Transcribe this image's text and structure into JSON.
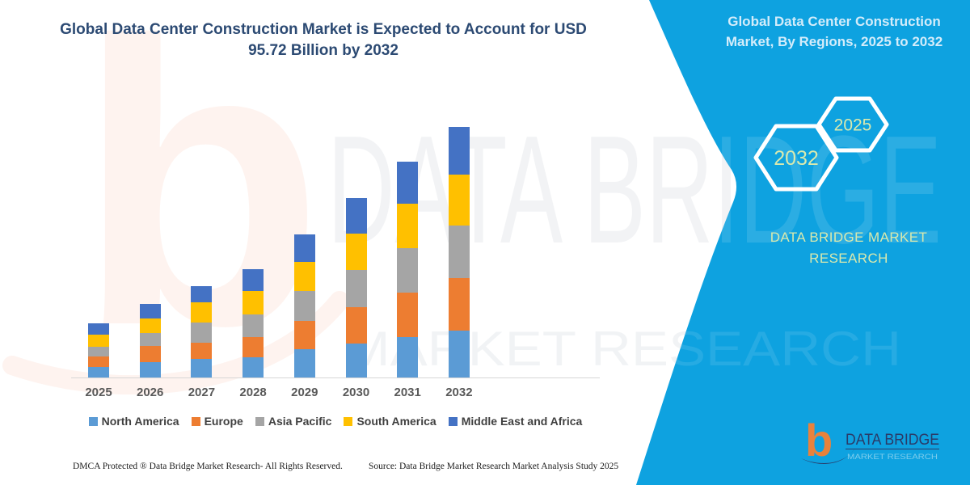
{
  "header": {
    "title_line1": "Global Data Center Construction Market is Expected to Account for USD",
    "title_line2": "95.72 Billion by 2032"
  },
  "side_panel": {
    "heading": "Global Data Center Construction Market, By Regions, 2025 to 2032",
    "hexagons": [
      {
        "label": "2032"
      },
      {
        "label": "2025"
      }
    ],
    "brand_text": "DATA BRIDGE MARKET RESEARCH",
    "background_color": "#0ea2e0",
    "heading_color": "#d3ecfa",
    "accent_text_color": "#d9e9ae"
  },
  "chart_data": {
    "type": "bar",
    "stacked": true,
    "title": "Global Data Center Construction Market is Expected to Account for USD 95.72 Billion by 2032",
    "unit": "USD Billion",
    "xlabel": "",
    "ylabel": "",
    "ylim": [
      0,
      100
    ],
    "grid": false,
    "legend_position": "bottom",
    "categories": [
      "2025",
      "2026",
      "2027",
      "2028",
      "2029",
      "2030",
      "2031",
      "2032"
    ],
    "series": [
      {
        "name": "North America",
        "color": "#5b9bd5",
        "values": [
          4.0,
          5.9,
          7.1,
          7.7,
          10.8,
          12.9,
          15.4,
          18.0
        ]
      },
      {
        "name": "Europe",
        "color": "#ed7d31",
        "values": [
          4.0,
          6.2,
          6.2,
          7.7,
          10.8,
          13.9,
          17.0,
          20.1
        ]
      },
      {
        "name": "Asia Pacific",
        "color": "#a5a5a5",
        "values": [
          3.7,
          4.9,
          7.7,
          8.6,
          11.3,
          14.4,
          17.0,
          19.8
        ]
      },
      {
        "name": "South America",
        "color": "#ffc000",
        "values": [
          4.6,
          5.6,
          7.7,
          9.0,
          11.3,
          13.7,
          17.0,
          19.6
        ]
      },
      {
        "name": "Middle East and Africa",
        "color": "#4472c4",
        "values": [
          4.3,
          5.6,
          6.2,
          8.3,
          10.3,
          13.6,
          16.0,
          18.22
        ]
      }
    ],
    "totals": [
      20.6,
      28.2,
      34.9,
      41.3,
      54.5,
      68.5,
      82.4,
      95.72
    ],
    "annotation_final_value": "USD 95.72 Billion by 2032"
  },
  "footer": {
    "dmca": "DMCA Protected ® Data Bridge Market Research- All Rights Reserved.",
    "source": "Source: Data Bridge Market Research Market Analysis Study 2025"
  },
  "logo": {
    "wordmark": "DATA BRIDGE",
    "tagline": "MARKET RESEARCH",
    "glyph": "b"
  },
  "watermark": {
    "glyph": "b",
    "text_top": "DATA BRIDGE",
    "text_bottom": "MARKET RESEARCH"
  }
}
